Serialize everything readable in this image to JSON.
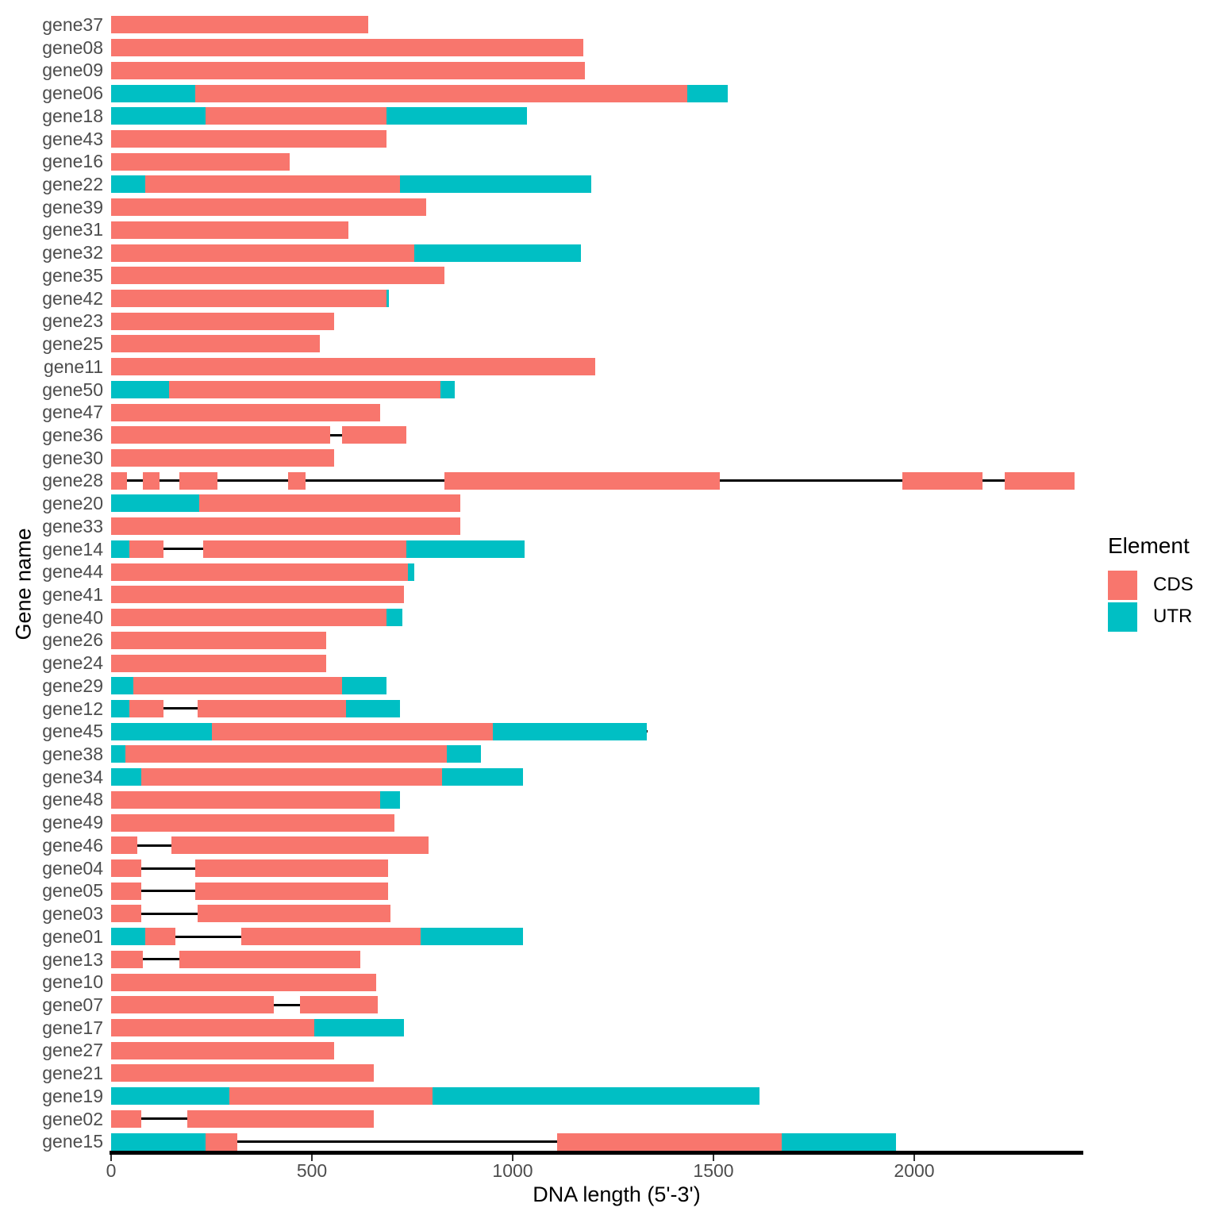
{
  "chart_data": {
    "type": "bar",
    "subtype": "gene-structure-horizontal-segments",
    "title": "",
    "x_axis": {
      "label": "DNA length (5'-3')",
      "ticks": [
        0,
        500,
        1000,
        1500,
        2000
      ],
      "min": 0,
      "max": 2420,
      "grid": false
    },
    "y_axis": {
      "label": "Gene name"
    },
    "legend": {
      "title": "Element",
      "position": "right",
      "items": [
        {
          "label": "CDS",
          "color": "#F8766D"
        },
        {
          "label": "UTR",
          "color": "#00BFC4"
        }
      ]
    },
    "colors": {
      "cds": "#F8766D",
      "utr": "#00BFC4",
      "intron_line": "#000000",
      "axis_line": "#000000",
      "tick_text": "#4d4d4d"
    },
    "genes": [
      {
        "name": "gene37",
        "segments": [
          {
            "element": "CDS",
            "start": 0,
            "end": 640
          }
        ]
      },
      {
        "name": "gene08",
        "segments": [
          {
            "element": "CDS",
            "start": 0,
            "end": 1175
          }
        ]
      },
      {
        "name": "gene09",
        "segments": [
          {
            "element": "CDS",
            "start": 0,
            "end": 1180
          }
        ]
      },
      {
        "name": "gene06",
        "segments": [
          {
            "element": "UTR",
            "start": 0,
            "end": 210
          },
          {
            "element": "CDS",
            "start": 210,
            "end": 1435
          },
          {
            "element": "UTR",
            "start": 1435,
            "end": 1535
          }
        ]
      },
      {
        "name": "gene18",
        "segments": [
          {
            "element": "UTR",
            "start": 0,
            "end": 235
          },
          {
            "element": "CDS",
            "start": 235,
            "end": 685
          },
          {
            "element": "UTR",
            "start": 685,
            "end": 1035
          }
        ]
      },
      {
        "name": "gene43",
        "segments": [
          {
            "element": "CDS",
            "start": 0,
            "end": 685
          }
        ]
      },
      {
        "name": "gene16",
        "segments": [
          {
            "element": "CDS",
            "start": 0,
            "end": 445
          }
        ]
      },
      {
        "name": "gene22",
        "segments": [
          {
            "element": "UTR",
            "start": 0,
            "end": 85
          },
          {
            "element": "CDS",
            "start": 85,
            "end": 720
          },
          {
            "element": "UTR",
            "start": 720,
            "end": 1195
          }
        ]
      },
      {
        "name": "gene39",
        "segments": [
          {
            "element": "CDS",
            "start": 0,
            "end": 785
          }
        ]
      },
      {
        "name": "gene31",
        "segments": [
          {
            "element": "CDS",
            "start": 0,
            "end": 590
          }
        ]
      },
      {
        "name": "gene32",
        "segments": [
          {
            "element": "CDS",
            "start": 0,
            "end": 755
          },
          {
            "element": "UTR",
            "start": 755,
            "end": 1170
          }
        ]
      },
      {
        "name": "gene35",
        "segments": [
          {
            "element": "CDS",
            "start": 0,
            "end": 830
          }
        ]
      },
      {
        "name": "gene42",
        "segments": [
          {
            "element": "CDS",
            "start": 0,
            "end": 685
          },
          {
            "element": "UTR",
            "start": 685,
            "end": 692
          }
        ]
      },
      {
        "name": "gene23",
        "segments": [
          {
            "element": "CDS",
            "start": 0,
            "end": 555
          }
        ]
      },
      {
        "name": "gene25",
        "segments": [
          {
            "element": "CDS",
            "start": 0,
            "end": 520
          }
        ]
      },
      {
        "name": "gene11",
        "segments": [
          {
            "element": "CDS",
            "start": 0,
            "end": 1205
          }
        ]
      },
      {
        "name": "gene50",
        "segments": [
          {
            "element": "UTR",
            "start": 0,
            "end": 145
          },
          {
            "element": "CDS",
            "start": 145,
            "end": 820
          },
          {
            "element": "UTR",
            "start": 820,
            "end": 855
          }
        ]
      },
      {
        "name": "gene47",
        "segments": [
          {
            "element": "CDS",
            "start": 0,
            "end": 670
          }
        ]
      },
      {
        "name": "gene36",
        "segments": [
          {
            "element": "CDS",
            "start": 0,
            "end": 545
          },
          {
            "element": "CDS",
            "start": 575,
            "end": 735
          }
        ]
      },
      {
        "name": "gene30",
        "segments": [
          {
            "element": "CDS",
            "start": 0,
            "end": 555
          }
        ]
      },
      {
        "name": "gene28",
        "segments": [
          {
            "element": "CDS",
            "start": 0,
            "end": 40
          },
          {
            "element": "CDS",
            "start": 80,
            "end": 120
          },
          {
            "element": "CDS",
            "start": 170,
            "end": 265
          },
          {
            "element": "CDS",
            "start": 440,
            "end": 485
          },
          {
            "element": "CDS",
            "start": 830,
            "end": 1515
          },
          {
            "element": "CDS",
            "start": 1970,
            "end": 2170
          },
          {
            "element": "CDS",
            "start": 2225,
            "end": 2400
          }
        ]
      },
      {
        "name": "gene20",
        "segments": [
          {
            "element": "UTR",
            "start": 0,
            "end": 220
          },
          {
            "element": "CDS",
            "start": 220,
            "end": 870
          }
        ]
      },
      {
        "name": "gene33",
        "segments": [
          {
            "element": "CDS",
            "start": 0,
            "end": 870
          }
        ]
      },
      {
        "name": "gene14",
        "segments": [
          {
            "element": "UTR",
            "start": 0,
            "end": 45
          },
          {
            "element": "CDS",
            "start": 45,
            "end": 130
          },
          {
            "element": "CDS",
            "start": 230,
            "end": 735
          },
          {
            "element": "UTR",
            "start": 735,
            "end": 1030
          }
        ]
      },
      {
        "name": "gene44",
        "segments": [
          {
            "element": "CDS",
            "start": 0,
            "end": 740
          },
          {
            "element": "UTR",
            "start": 740,
            "end": 755
          }
        ]
      },
      {
        "name": "gene41",
        "segments": [
          {
            "element": "CDS",
            "start": 0,
            "end": 730
          }
        ]
      },
      {
        "name": "gene40",
        "segments": [
          {
            "element": "CDS",
            "start": 0,
            "end": 685
          },
          {
            "element": "UTR",
            "start": 685,
            "end": 725
          }
        ]
      },
      {
        "name": "gene26",
        "segments": [
          {
            "element": "CDS",
            "start": 0,
            "end": 535
          }
        ]
      },
      {
        "name": "gene24",
        "segments": [
          {
            "element": "CDS",
            "start": 0,
            "end": 535
          }
        ]
      },
      {
        "name": "gene29",
        "segments": [
          {
            "element": "UTR",
            "start": 0,
            "end": 55
          },
          {
            "element": "CDS",
            "start": 55,
            "end": 575
          },
          {
            "element": "UTR",
            "start": 575,
            "end": 685
          }
        ]
      },
      {
        "name": "gene12",
        "segments": [
          {
            "element": "UTR",
            "start": 0,
            "end": 45
          },
          {
            "element": "CDS",
            "start": 45,
            "end": 130
          },
          {
            "element": "CDS",
            "start": 215,
            "end": 585
          },
          {
            "element": "UTR",
            "start": 585,
            "end": 720
          }
        ]
      },
      {
        "name": "gene45",
        "segments": [
          {
            "element": "UTR",
            "start": 0,
            "end": 250
          },
          {
            "element": "CDS",
            "start": 250,
            "end": 950
          },
          {
            "element": "UTR",
            "start": 950,
            "end": 1335
          }
        ]
      },
      {
        "name": "gene38",
        "segments": [
          {
            "element": "UTR",
            "start": 0,
            "end": 35
          },
          {
            "element": "CDS",
            "start": 35,
            "end": 835
          },
          {
            "element": "UTR",
            "start": 835,
            "end": 920
          }
        ]
      },
      {
        "name": "gene34",
        "segments": [
          {
            "element": "UTR",
            "start": 0,
            "end": 75
          },
          {
            "element": "CDS",
            "start": 75,
            "end": 825
          },
          {
            "element": "UTR",
            "start": 825,
            "end": 1025
          }
        ]
      },
      {
        "name": "gene48",
        "segments": [
          {
            "element": "CDS",
            "start": 0,
            "end": 670
          },
          {
            "element": "UTR",
            "start": 670,
            "end": 720
          }
        ]
      },
      {
        "name": "gene49",
        "segments": [
          {
            "element": "CDS",
            "start": 0,
            "end": 705
          }
        ]
      },
      {
        "name": "gene46",
        "segments": [
          {
            "element": "CDS",
            "start": 0,
            "end": 65
          },
          {
            "element": "CDS",
            "start": 150,
            "end": 790
          }
        ]
      },
      {
        "name": "gene04",
        "segments": [
          {
            "element": "CDS",
            "start": 0,
            "end": 75
          },
          {
            "element": "CDS",
            "start": 210,
            "end": 690
          }
        ]
      },
      {
        "name": "gene05",
        "segments": [
          {
            "element": "CDS",
            "start": 0,
            "end": 75
          },
          {
            "element": "CDS",
            "start": 210,
            "end": 690
          }
        ]
      },
      {
        "name": "gene03",
        "segments": [
          {
            "element": "CDS",
            "start": 0,
            "end": 75
          },
          {
            "element": "CDS",
            "start": 215,
            "end": 695
          }
        ]
      },
      {
        "name": "gene01",
        "segments": [
          {
            "element": "UTR",
            "start": 0,
            "end": 85
          },
          {
            "element": "CDS",
            "start": 85,
            "end": 160
          },
          {
            "element": "CDS",
            "start": 325,
            "end": 770
          },
          {
            "element": "UTR",
            "start": 770,
            "end": 1025
          }
        ]
      },
      {
        "name": "gene13",
        "segments": [
          {
            "element": "CDS",
            "start": 0,
            "end": 80
          },
          {
            "element": "CDS",
            "start": 170,
            "end": 620
          }
        ]
      },
      {
        "name": "gene10",
        "segments": [
          {
            "element": "CDS",
            "start": 0,
            "end": 660
          }
        ]
      },
      {
        "name": "gene07",
        "segments": [
          {
            "element": "CDS",
            "start": 0,
            "end": 405
          },
          {
            "element": "CDS",
            "start": 470,
            "end": 665
          }
        ]
      },
      {
        "name": "gene17",
        "segments": [
          {
            "element": "CDS",
            "start": 0,
            "end": 505
          },
          {
            "element": "UTR",
            "start": 505,
            "end": 730
          }
        ]
      },
      {
        "name": "gene27",
        "segments": [
          {
            "element": "CDS",
            "start": 0,
            "end": 555
          }
        ]
      },
      {
        "name": "gene21",
        "segments": [
          {
            "element": "CDS",
            "start": 0,
            "end": 655
          }
        ]
      },
      {
        "name": "gene19",
        "segments": [
          {
            "element": "UTR",
            "start": 0,
            "end": 295
          },
          {
            "element": "CDS",
            "start": 295,
            "end": 800
          },
          {
            "element": "UTR",
            "start": 800,
            "end": 1615
          }
        ]
      },
      {
        "name": "gene02",
        "segments": [
          {
            "element": "CDS",
            "start": 0,
            "end": 75
          },
          {
            "element": "CDS",
            "start": 190,
            "end": 655
          }
        ]
      },
      {
        "name": "gene15",
        "segments": [
          {
            "element": "UTR",
            "start": 0,
            "end": 235
          },
          {
            "element": "CDS",
            "start": 235,
            "end": 315
          },
          {
            "element": "CDS",
            "start": 1110,
            "end": 1670
          },
          {
            "element": "UTR",
            "start": 1670,
            "end": 1955
          }
        ]
      }
    ]
  }
}
